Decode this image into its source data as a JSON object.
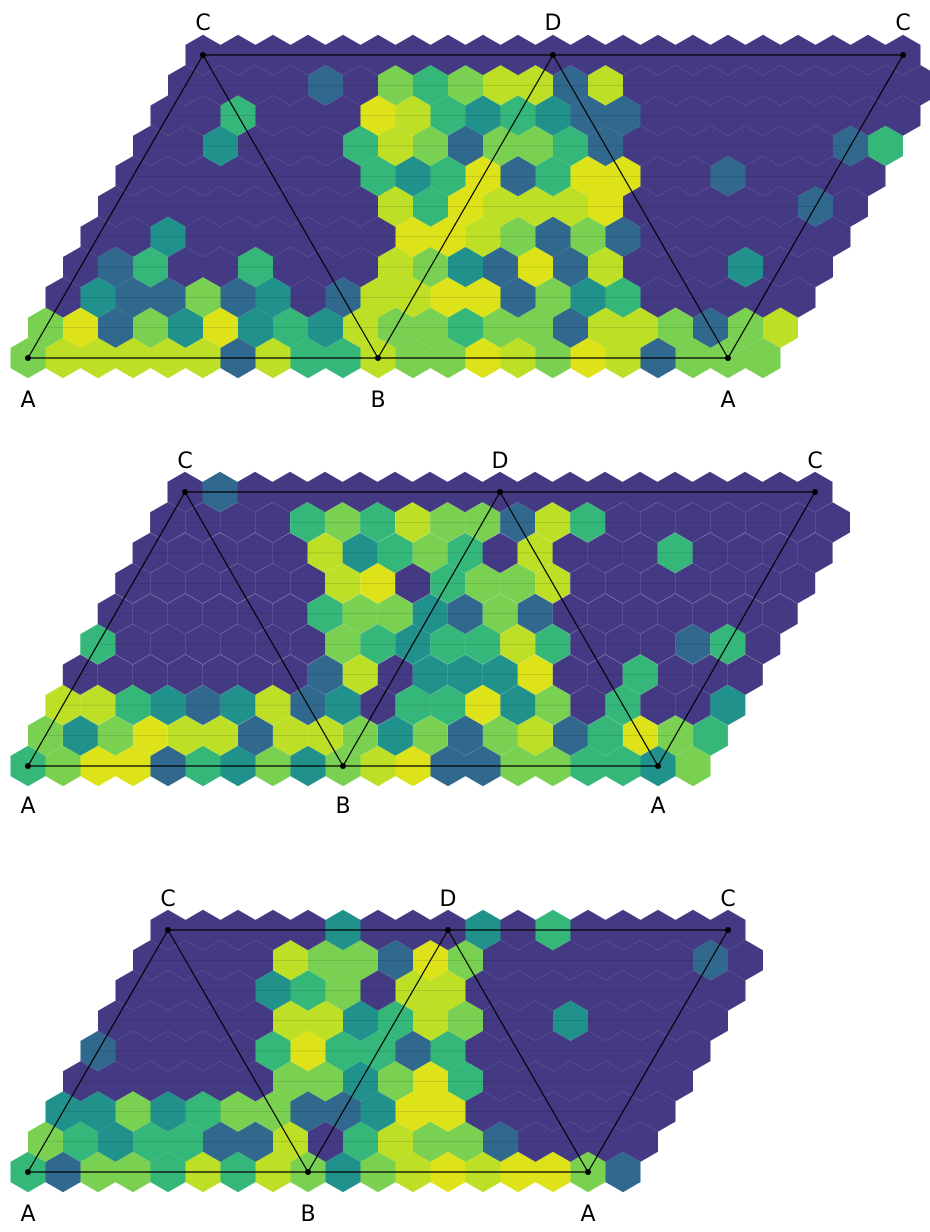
{
  "figure": {
    "panels": [
      {
        "corner_labels": [
          "C",
          "D",
          "C",
          "A",
          "B",
          "A"
        ],
        "hex_cells": [
          "PPPPPPPPPPPPPPPPPPPPPPPPPPPPPPPPPPPPPPPPPPPPPPPPPPPPPPPPPPPPPPPPPP",
          "PPPPPPPPPPPPPPPPPPPPPPPPPPPPPPPPPPPPPPPPPPPPPPPPPPPPPPPPPPPPPPPPPP",
          "PPPPPPPPPPPPPPPPPPPPPPPPPPPPPPPPPPPPPPPPPPPPPPPPPPPPPPPPPPPPPPPPPP"
        ]
      },
      {
        "corner_labels": [
          "C",
          "D",
          "C",
          "A",
          "B",
          "A"
        ]
      },
      {
        "corner_labels": [
          "C",
          "D",
          "C",
          "A",
          "B",
          "A"
        ]
      }
    ],
    "colors": {
      "deep_purple": "#443a83",
      "blue": "#31688e",
      "teal": "#21918c",
      "green": "#35b779",
      "light_green": "#7ad151",
      "lime": "#bddf26",
      "yellow": "#dde318"
    }
  }
}
